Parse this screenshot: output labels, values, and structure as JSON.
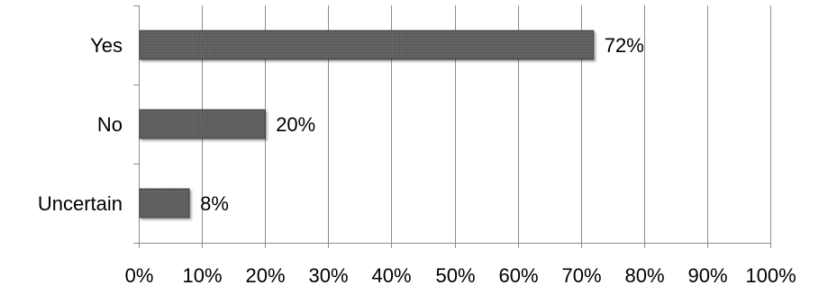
{
  "chart_data": {
    "type": "bar",
    "orientation": "horizontal",
    "categories": [
      "Yes",
      "No",
      "Uncertain"
    ],
    "values": [
      72,
      20,
      8
    ],
    "value_labels": [
      "72%",
      "20%",
      "8%"
    ],
    "xlim": [
      0,
      100
    ],
    "x_ticks": [
      0,
      10,
      20,
      30,
      40,
      50,
      60,
      70,
      80,
      90,
      100
    ],
    "x_tick_labels": [
      "0%",
      "10%",
      "20%",
      "30%",
      "40%",
      "50%",
      "60%",
      "70%",
      "80%",
      "90%",
      "100%"
    ],
    "grid": true,
    "legend": "none",
    "colors": {
      "bar_fill": "#5f5f5f",
      "bar_edge": "#3f3f3f",
      "grid": "#8c8c8c",
      "axis": "#8c8c8c",
      "text": "#000000"
    }
  }
}
